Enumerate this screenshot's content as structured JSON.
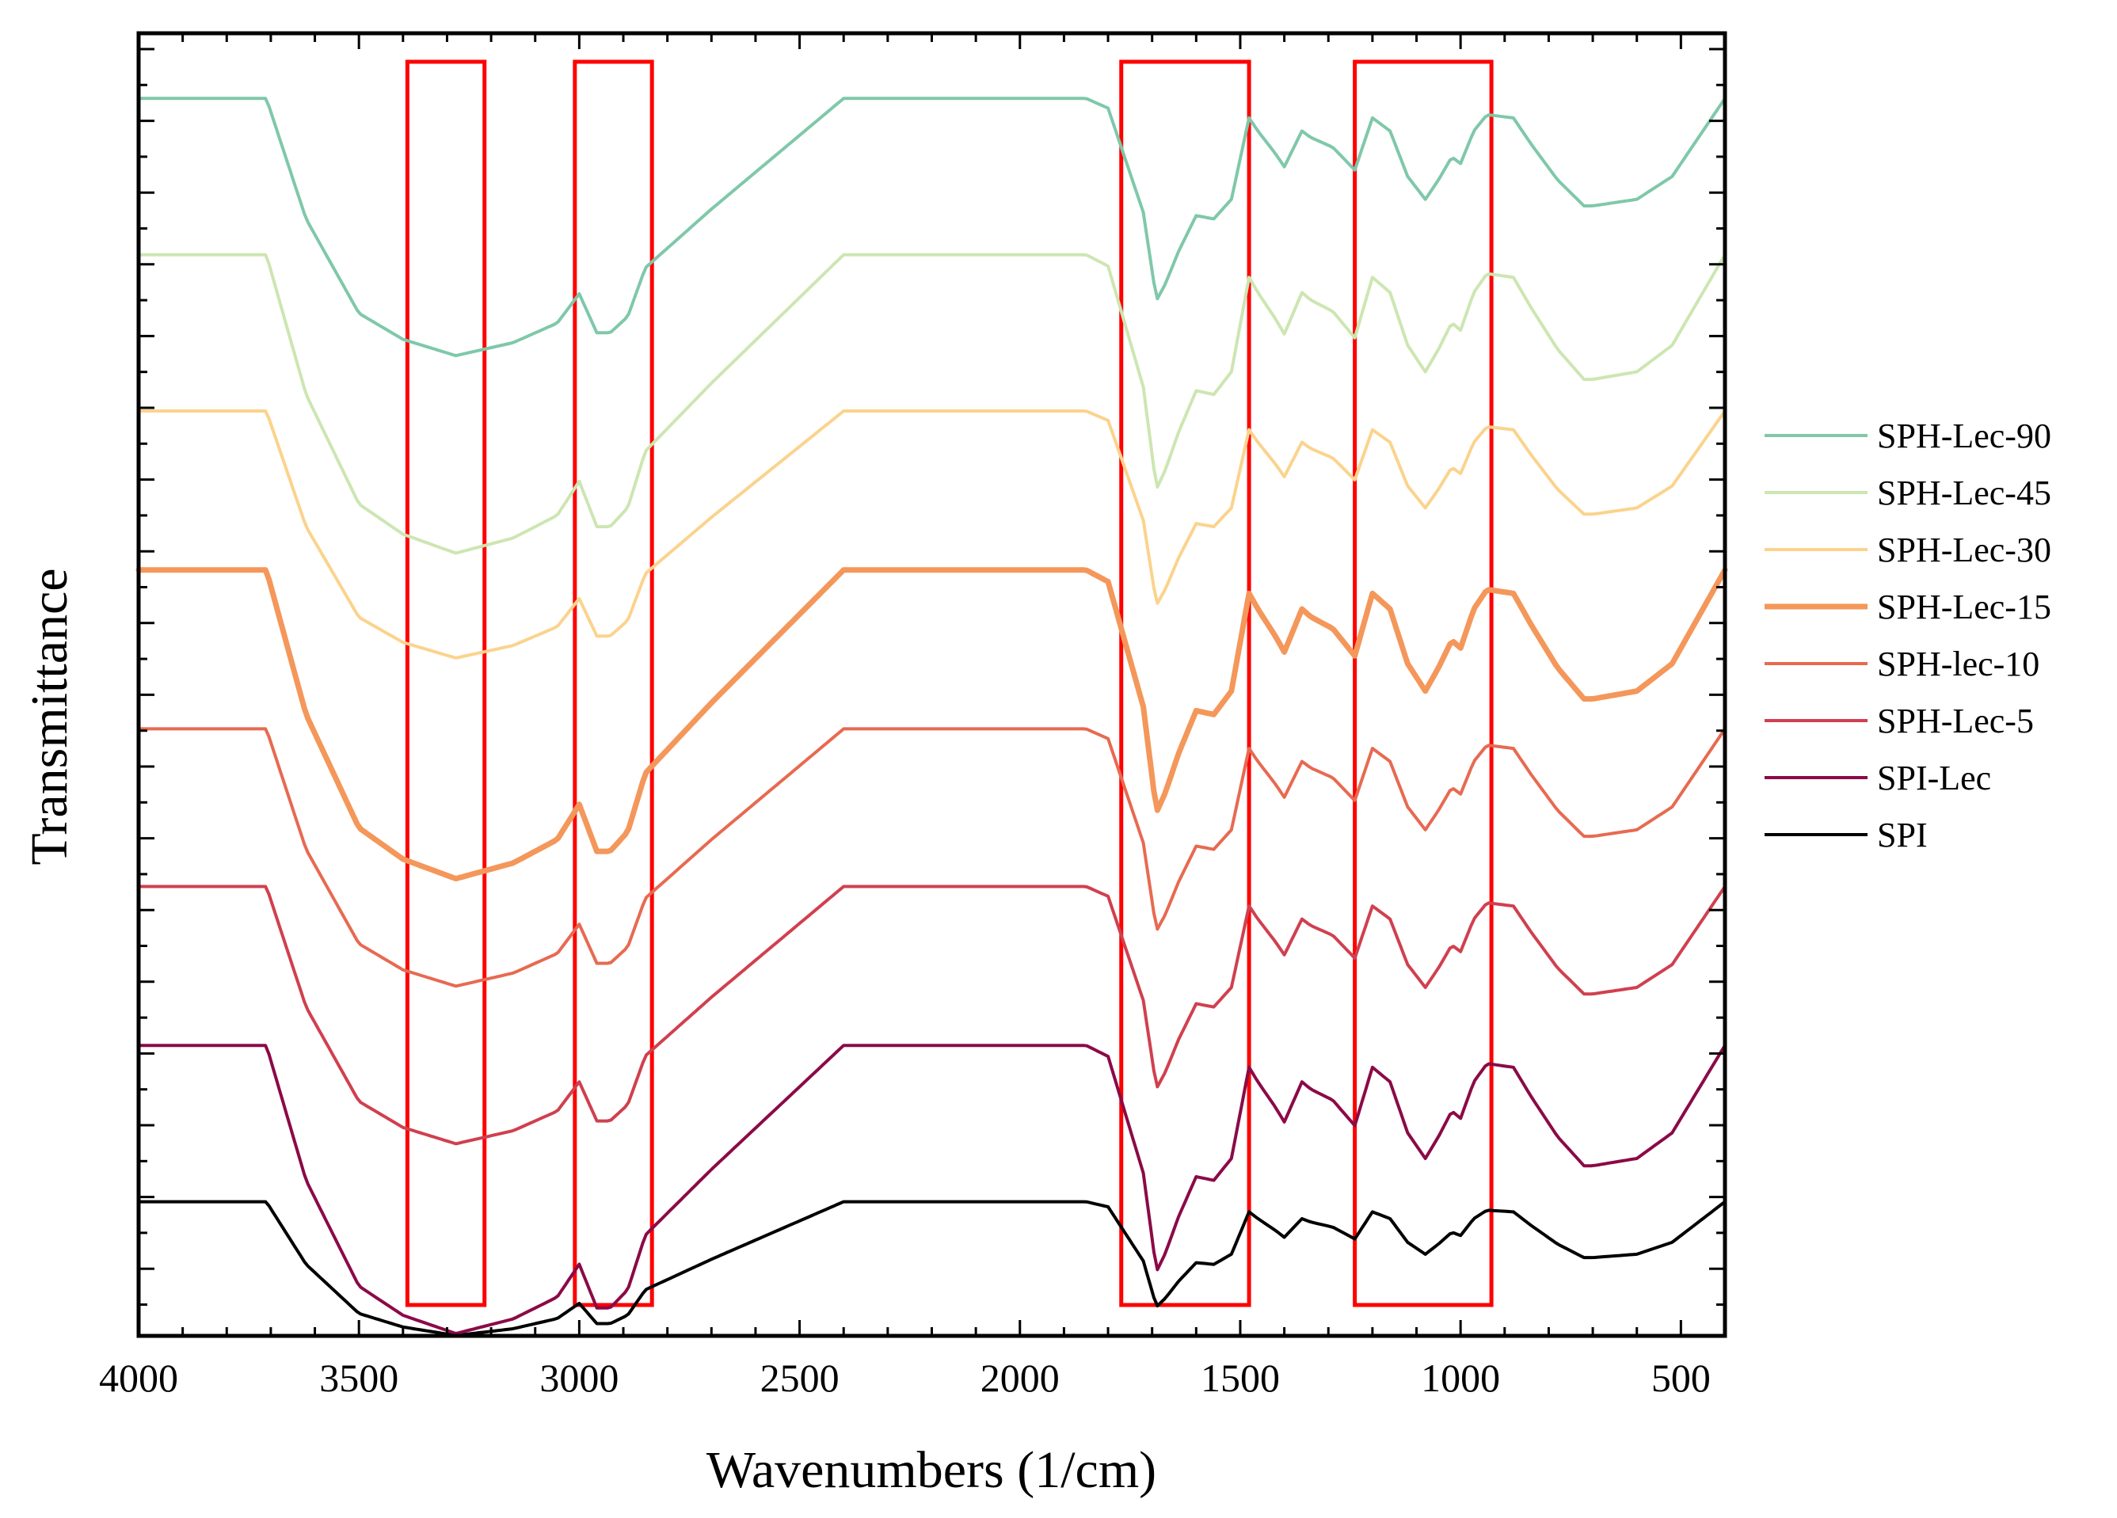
{
  "chart_data": {
    "type": "line",
    "title": "",
    "xlabel": "Wavenumbers (1/cm)",
    "ylabel": "Transmittance",
    "xlim": [
      4000,
      400
    ],
    "x_reversed": true,
    "ylim": [
      0,
      100
    ],
    "y_tick_labels": false,
    "grid": false,
    "legend_position": "right",
    "x_ticks": [
      4000,
      3500,
      3000,
      2500,
      2000,
      1500,
      1000,
      500
    ],
    "highlight_regions": [
      {
        "x_range": [
          3390,
          3215
        ],
        "color": "#ff0000"
      },
      {
        "x_range": [
          3010,
          2835
        ],
        "color": "#ff0000"
      },
      {
        "x_range": [
          1770,
          1480
        ],
        "color": "#ff0000"
      },
      {
        "x_range": [
          1240,
          930
        ],
        "color": "#ff0000"
      }
    ],
    "offset_units": "arbitrary (stacked, top series highest)",
    "shape_profile": {
      "x": [
        4000,
        3710,
        3620,
        3500,
        3400,
        3280,
        3150,
        3050,
        3000,
        2960,
        2930,
        2890,
        2850,
        2700,
        2550,
        2400,
        1850,
        1800,
        1720,
        1690,
        1670,
        1640,
        1600,
        1560,
        1520,
        1480,
        1460,
        1420,
        1400,
        1360,
        1340,
        1290,
        1240,
        1200,
        1160,
        1120,
        1080,
        1050,
        1020,
        1000,
        970,
        940,
        880,
        840,
        780,
        720,
        700,
        600,
        520,
        460,
        400
      ],
      "depth": [
        0,
        0,
        37,
        66,
        74,
        79,
        75,
        69,
        60,
        72,
        72,
        67,
        52,
        34,
        17,
        0,
        0,
        3,
        35,
        62,
        57,
        47,
        36,
        37,
        31,
        6,
        10,
        17,
        21,
        10,
        12,
        15,
        22,
        6,
        10,
        24,
        31,
        25,
        18,
        20,
        10,
        5,
        6,
        14,
        25,
        33,
        33,
        31,
        24,
        12,
        0
      ]
    },
    "series": [
      {
        "name": "SPH-Lec-90",
        "color": "#7fc8a9",
        "baseline": 95.0,
        "depth_scale": 0.25,
        "line_width": 4
      },
      {
        "name": "SPH-Lec-45",
        "color": "#cde6b2",
        "baseline": 83.0,
        "depth_scale": 0.29,
        "line_width": 4
      },
      {
        "name": "SPH-Lec-30",
        "color": "#fbd38d",
        "baseline": 71.0,
        "depth_scale": 0.24,
        "line_width": 4
      },
      {
        "name": "SPH-Lec-15",
        "color": "#f4975a",
        "baseline": 58.8,
        "depth_scale": 0.3,
        "line_width": 7
      },
      {
        "name": "SPH-lec-10",
        "color": "#e76a51",
        "baseline": 46.6,
        "depth_scale": 0.25,
        "line_width": 4
      },
      {
        "name": "SPH-Lec-5",
        "color": "#d0404f",
        "baseline": 34.5,
        "depth_scale": 0.25,
        "line_width": 4
      },
      {
        "name": "SPI-Lec",
        "color": "#8b0a47",
        "baseline": 22.3,
        "depth_scale": 0.28,
        "line_width": 4
      },
      {
        "name": "SPI",
        "color": "#000000",
        "baseline": 10.3,
        "depth_scale": 0.13,
        "line_width": 4
      }
    ]
  }
}
